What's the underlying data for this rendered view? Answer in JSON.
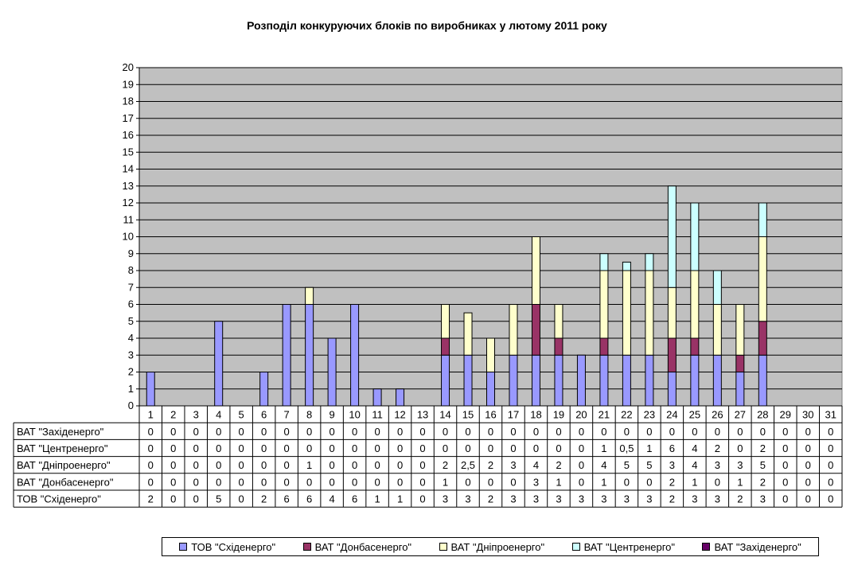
{
  "chart_data": {
    "type": "bar",
    "stacked": true,
    "title": "Розподіл конкуруючих блоків по виробниках у лютому 2011 року",
    "categories": [
      "1",
      "2",
      "3",
      "4",
      "5",
      "6",
      "7",
      "8",
      "9",
      "10",
      "11",
      "12",
      "13",
      "14",
      "15",
      "16",
      "17",
      "18",
      "19",
      "20",
      "21",
      "22",
      "23",
      "24",
      "25",
      "26",
      "27",
      "28",
      "29",
      "30",
      "31"
    ],
    "ylim": [
      0,
      20
    ],
    "yticks": [
      "0",
      "1",
      "2",
      "3",
      "4",
      "5",
      "6",
      "7",
      "8",
      "9",
      "10",
      "11",
      "12",
      "13",
      "14",
      "15",
      "16",
      "17",
      "18",
      "19",
      "20"
    ],
    "grid": true,
    "legend_position": "bottom",
    "series": [
      {
        "name": "ТОВ \"Східенерго\"",
        "color": "#9999ff",
        "values": [
          2,
          0,
          0,
          5,
          0,
          2,
          6,
          6,
          4,
          6,
          1,
          1,
          0,
          3,
          3,
          2,
          3,
          3,
          3,
          3,
          3,
          3,
          3,
          2,
          3,
          3,
          2,
          3,
          0,
          0,
          0
        ],
        "labels": [
          "2",
          "0",
          "0",
          "5",
          "0",
          "2",
          "6",
          "6",
          "4",
          "6",
          "1",
          "1",
          "0",
          "3",
          "3",
          "2",
          "3",
          "3",
          "3",
          "3",
          "3",
          "3",
          "3",
          "2",
          "3",
          "3",
          "2",
          "3",
          "0",
          "0",
          "0"
        ]
      },
      {
        "name": "ВАТ \"Донбасенерго\"",
        "color": "#993366",
        "values": [
          0,
          0,
          0,
          0,
          0,
          0,
          0,
          0,
          0,
          0,
          0,
          0,
          0,
          1,
          0,
          0,
          0,
          3,
          1,
          0,
          1,
          0,
          0,
          2,
          1,
          0,
          1,
          2,
          0,
          0,
          0
        ],
        "labels": [
          "0",
          "0",
          "0",
          "0",
          "0",
          "0",
          "0",
          "0",
          "0",
          "0",
          "0",
          "0",
          "0",
          "1",
          "0",
          "0",
          "0",
          "3",
          "1",
          "0",
          "1",
          "0",
          "0",
          "2",
          "1",
          "0",
          "1",
          "2",
          "0",
          "0",
          "0"
        ]
      },
      {
        "name": "ВАТ \"Дніпроенерго\"",
        "color": "#ffffcc",
        "values": [
          0,
          0,
          0,
          0,
          0,
          0,
          0,
          1,
          0,
          0,
          0,
          0,
          0,
          2,
          2.5,
          2,
          3,
          4,
          2,
          0,
          4,
          5,
          5,
          3,
          4,
          3,
          3,
          5,
          0,
          0,
          0
        ],
        "labels": [
          "0",
          "0",
          "0",
          "0",
          "0",
          "0",
          "0",
          "1",
          "0",
          "0",
          "0",
          "0",
          "0",
          "2",
          "2,5",
          "2",
          "3",
          "4",
          "2",
          "0",
          "4",
          "5",
          "5",
          "3",
          "4",
          "3",
          "3",
          "5",
          "0",
          "0",
          "0"
        ]
      },
      {
        "name": "ВАТ \"Центренерго\"",
        "color": "#ccffff",
        "values": [
          0,
          0,
          0,
          0,
          0,
          0,
          0,
          0,
          0,
          0,
          0,
          0,
          0,
          0,
          0,
          0,
          0,
          0,
          0,
          0,
          1,
          0.5,
          1,
          6,
          4,
          2,
          0,
          2,
          0,
          0,
          0
        ],
        "labels": [
          "0",
          "0",
          "0",
          "0",
          "0",
          "0",
          "0",
          "0",
          "0",
          "0",
          "0",
          "0",
          "0",
          "0",
          "0",
          "0",
          "0",
          "0",
          "0",
          "0",
          "1",
          "0,5",
          "1",
          "6",
          "4",
          "2",
          "0",
          "2",
          "0",
          "0",
          "0"
        ]
      },
      {
        "name": "ВАТ \"Західенерго\"",
        "color": "#660066",
        "values": [
          0,
          0,
          0,
          0,
          0,
          0,
          0,
          0,
          0,
          0,
          0,
          0,
          0,
          0,
          0,
          0,
          0,
          0,
          0,
          0,
          0,
          0,
          0,
          0,
          0,
          0,
          0,
          0,
          0,
          0,
          0
        ],
        "labels": [
          "0",
          "0",
          "0",
          "0",
          "0",
          "0",
          "0",
          "0",
          "0",
          "0",
          "0",
          "0",
          "0",
          "0",
          "0",
          "0",
          "0",
          "0",
          "0",
          "0",
          "0",
          "0",
          "0",
          "0",
          "0",
          "0",
          "0",
          "0",
          "0",
          "0",
          "0"
        ]
      }
    ],
    "table_row_order": [
      4,
      3,
      2,
      1,
      0
    ]
  }
}
